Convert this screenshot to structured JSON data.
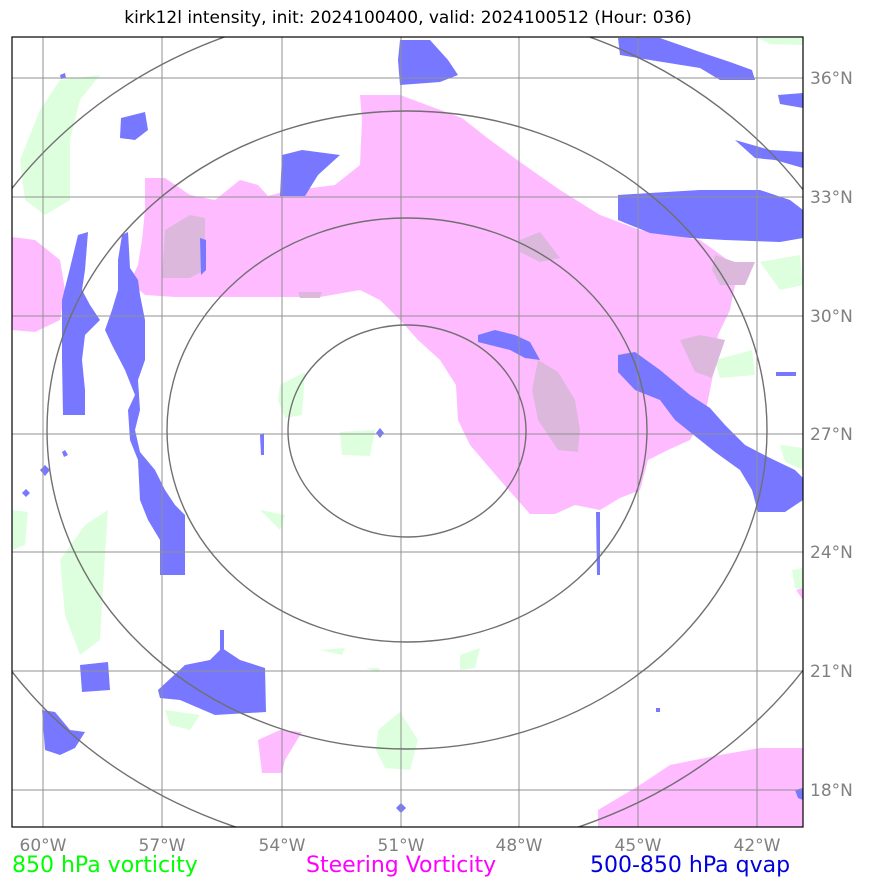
{
  "title": "kirk12l intensity, init: 2024100400, valid: 2024100512 (Hour: 036)",
  "lon_labels": [
    "60°W",
    "57°W",
    "54°W",
    "51°W",
    "48°W",
    "45°W",
    "42°W"
  ],
  "lat_labels": [
    "36°N",
    "33°N",
    "30°N",
    "27°N",
    "24°N",
    "21°N",
    "18°N"
  ],
  "legend": {
    "vort850": "850 hPa vorticity",
    "steering": "Steering Vorticity",
    "qvap": "500-850 hPa qvap"
  },
  "colors": {
    "vort850": "#00ff00",
    "steering": "#ff00ff",
    "qvap": "#0000dd",
    "grid": "#808080"
  }
}
